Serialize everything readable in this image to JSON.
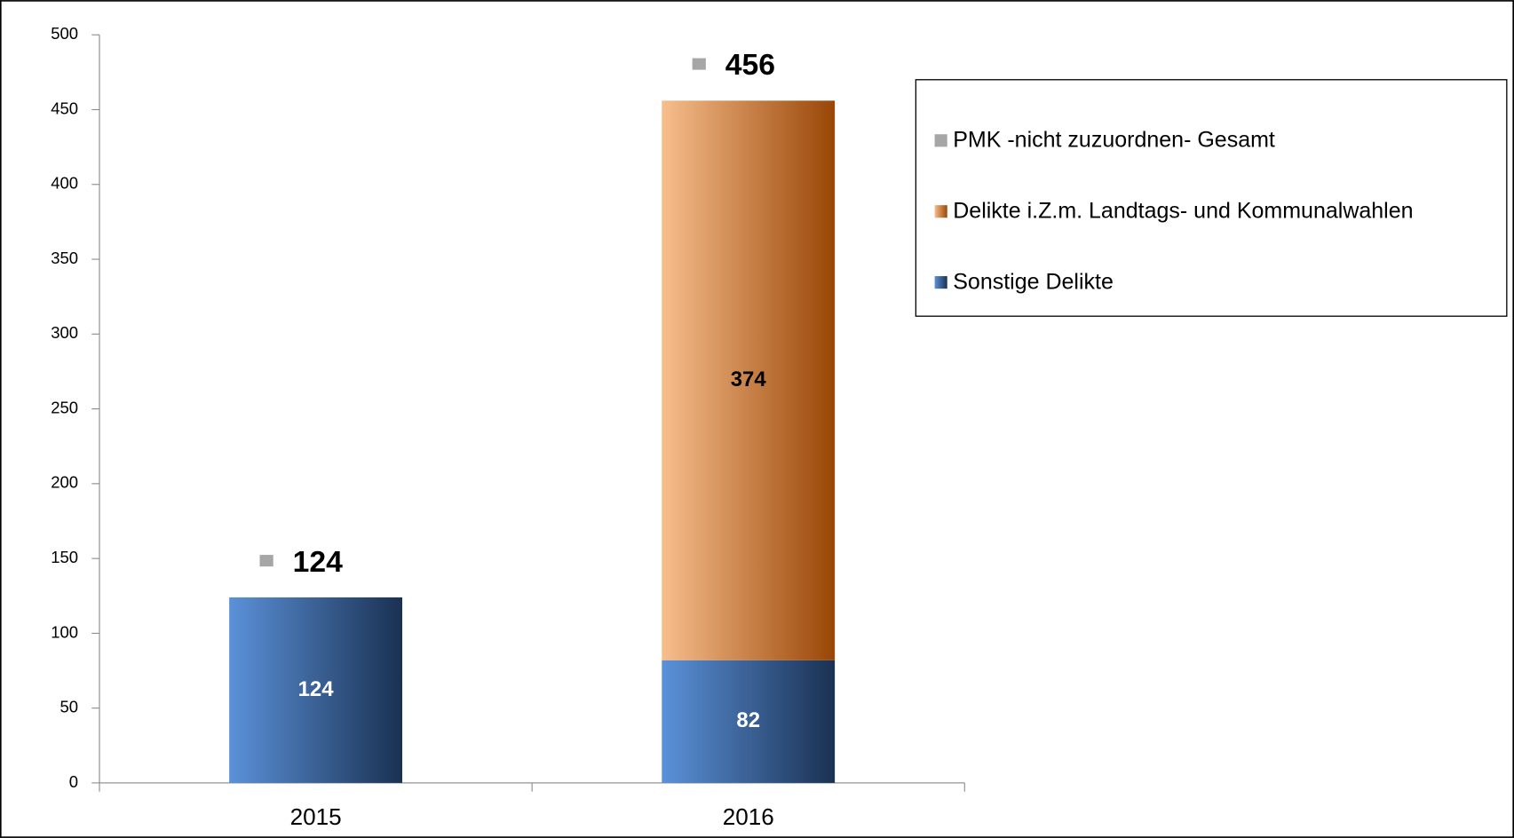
{
  "chart_data": {
    "type": "stacked-bar",
    "categories": [
      "2015",
      "2016"
    ],
    "series": [
      {
        "name": "Sonstige Delikte",
        "color": [
          "#5b91d9",
          "#1a3152"
        ],
        "values": [
          124,
          82
        ],
        "label_color": "#ffffff"
      },
      {
        "name": "Delikte i.Z.m. Landtags- und Kommunalwahlen",
        "color": [
          "#f7be8c",
          "#994606"
        ],
        "values": [
          null,
          374
        ],
        "label_color": "#000000"
      }
    ],
    "total_series": {
      "name": "PMK -nicht zuzuordnen- Gesamt",
      "color": "#a6a6a6",
      "values": [
        124,
        456
      ]
    },
    "ylim": [
      0,
      500
    ],
    "yticks": [
      0,
      50,
      100,
      150,
      200,
      250,
      300,
      350,
      400,
      450,
      500
    ],
    "grid": false,
    "legend": "right"
  }
}
